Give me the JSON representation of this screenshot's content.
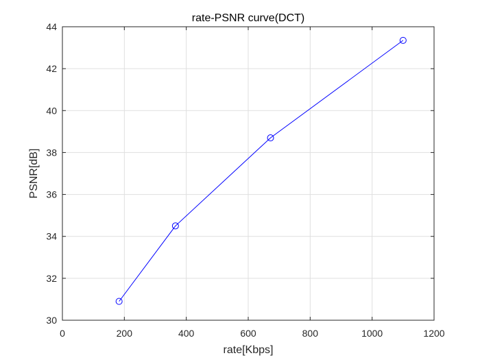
{
  "chart_data": {
    "type": "line",
    "title": "rate-PSNR curve(DCT)",
    "xlabel": "rate[Kbps]",
    "ylabel": "PSNR[dB]",
    "xlim": [
      0,
      1200
    ],
    "ylim": [
      30,
      44
    ],
    "xticks": [
      0,
      200,
      400,
      600,
      800,
      1000,
      1200
    ],
    "yticks": [
      30,
      32,
      34,
      36,
      38,
      40,
      42,
      44
    ],
    "grid": true,
    "series": [
      {
        "x": [
          183,
          365,
          672,
          1100
        ],
        "y": [
          30.9,
          34.5,
          38.7,
          43.35
        ],
        "color": "#0000ff",
        "marker": "circle"
      }
    ]
  }
}
